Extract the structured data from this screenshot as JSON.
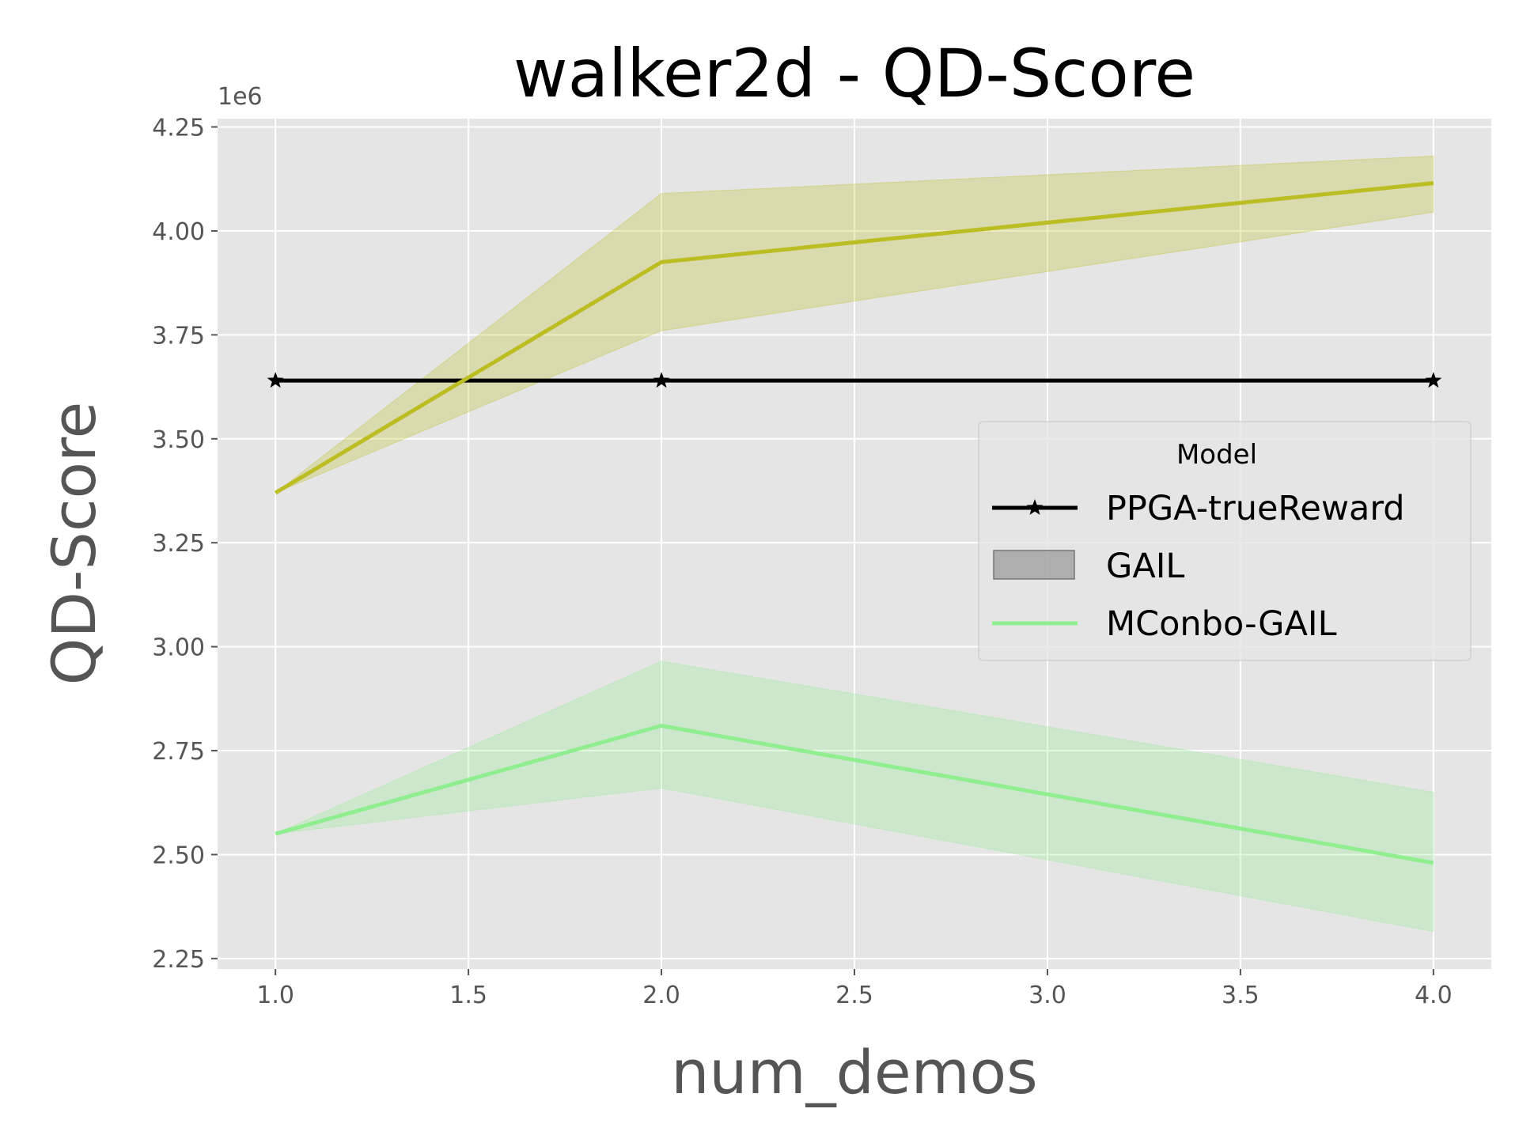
{
  "chart_data": {
    "type": "line",
    "title": "walker2d - QD-Score",
    "xlabel": "num_demos",
    "ylabel": "QD-Score",
    "y_multiplier_label": "1e6",
    "xlim": [
      0.85,
      4.15
    ],
    "ylim": [
      2.225,
      4.27
    ],
    "x_ticks": [
      1.0,
      1.5,
      2.0,
      2.5,
      3.0,
      3.5,
      4.0
    ],
    "x_tick_labels": [
      "1.0",
      "1.5",
      "2.0",
      "2.5",
      "3.0",
      "3.5",
      "4.0"
    ],
    "y_ticks": [
      2.25,
      2.5,
      2.75,
      3.0,
      3.25,
      3.5,
      3.75,
      4.0,
      4.25
    ],
    "y_tick_labels": [
      "2.25",
      "2.50",
      "2.75",
      "3.00",
      "3.25",
      "3.50",
      "3.75",
      "4.00",
      "4.25"
    ],
    "grid": true,
    "background": "#e5e5e5",
    "legend": {
      "title": "Model",
      "placement": "center-right",
      "entries": [
        "PPGA-trueReward",
        "GAIL",
        "MConbo-GAIL"
      ]
    },
    "series": [
      {
        "name": "PPGA-trueReward",
        "color": "#000000",
        "marker": "star",
        "x": [
          1.0,
          2.0,
          4.0
        ],
        "y": [
          3.64,
          3.64,
          3.64
        ]
      },
      {
        "name": "GAIL",
        "color": "#bcbd22",
        "marker": "none",
        "x": [
          1.0,
          2.0,
          4.0
        ],
        "y": [
          3.37,
          3.925,
          4.115
        ],
        "lower": [
          3.37,
          3.76,
          4.045
        ],
        "upper": [
          3.37,
          4.09,
          4.18
        ]
      },
      {
        "name": "MConbo-GAIL",
        "color": "#90ee90",
        "marker": "none",
        "x": [
          1.0,
          2.0,
          4.0
        ],
        "y": [
          2.55,
          2.81,
          2.48
        ],
        "lower": [
          2.55,
          2.66,
          2.315
        ],
        "upper": [
          2.55,
          2.965,
          2.65
        ]
      }
    ]
  }
}
